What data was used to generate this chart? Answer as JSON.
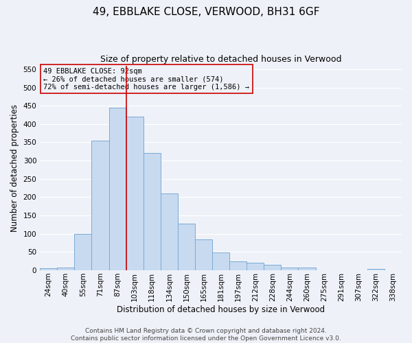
{
  "title": "49, EBBLAKE CLOSE, VERWOOD, BH31 6GF",
  "subtitle": "Size of property relative to detached houses in Verwood",
  "xlabel": "Distribution of detached houses by size in Verwood",
  "ylabel": "Number of detached properties",
  "bar_labels": [
    "24sqm",
    "40sqm",
    "55sqm",
    "71sqm",
    "87sqm",
    "103sqm",
    "118sqm",
    "134sqm",
    "150sqm",
    "165sqm",
    "181sqm",
    "197sqm",
    "212sqm",
    "228sqm",
    "244sqm",
    "260sqm",
    "275sqm",
    "291sqm",
    "307sqm",
    "322sqm",
    "338sqm"
  ],
  "bar_values": [
    5,
    8,
    100,
    355,
    445,
    420,
    320,
    210,
    128,
    85,
    48,
    25,
    20,
    15,
    8,
    8,
    0,
    0,
    0,
    3,
    0
  ],
  "bar_color": "#c8daf0",
  "bar_edgecolor": "#7aaad4",
  "vline_x": 4.5,
  "vline_color": "#cc0000",
  "annotation_title": "49 EBBLAKE CLOSE: 92sqm",
  "annotation_line2": "← 26% of detached houses are smaller (574)",
  "annotation_line3": "72% of semi-detached houses are larger (1,586) →",
  "annotation_box_edgecolor": "#cc0000",
  "ylim": [
    0,
    560
  ],
  "yticks": [
    0,
    50,
    100,
    150,
    200,
    250,
    300,
    350,
    400,
    450,
    500,
    550
  ],
  "footer_line1": "Contains HM Land Registry data © Crown copyright and database right 2024.",
  "footer_line2": "Contains public sector information licensed under the Open Government Licence v3.0.",
  "background_color": "#eef2f8",
  "grid_color": "#ffffff",
  "title_fontsize": 11,
  "subtitle_fontsize": 9,
  "axis_label_fontsize": 8.5,
  "tick_fontsize": 7.5,
  "footer_fontsize": 6.5
}
